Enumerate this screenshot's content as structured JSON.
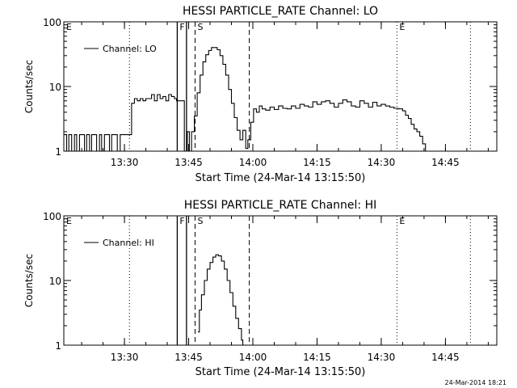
{
  "footer": "24-Mar-2014 18:21",
  "chart_data": [
    {
      "type": "line",
      "title": "HESSI PARTICLE_RATE Channel: LO",
      "xlabel": "Start Time (24-Mar-14 13:15:50)",
      "ylabel": "Counts/sec",
      "yscale": "log",
      "ylim": [
        1,
        100
      ],
      "xlim": [
        "13:15:50",
        "14:57:00"
      ],
      "xticks": [
        "13:30",
        "13:45",
        "14:00",
        "14:15",
        "14:30",
        "14:45"
      ],
      "yticks": [
        "1",
        "10",
        "100"
      ],
      "grid": false,
      "legend": {
        "position": "top-left",
        "entries": [
          "Channel: LO"
        ]
      },
      "markers": [
        {
          "label": "E",
          "time": "13:15:50",
          "style": "dotted"
        },
        {
          "label": "",
          "time": "13:31:10",
          "style": "dotted"
        },
        {
          "label": "F",
          "time": "13:42:20",
          "style": "solid"
        },
        {
          "label": "",
          "time": "13:44:30",
          "style": "solid"
        },
        {
          "label": "S",
          "time": "13:46:30",
          "style": "dashed"
        },
        {
          "label": "",
          "time": "13:59:10",
          "style": "dashed"
        },
        {
          "label": "E",
          "time": "14:33:40",
          "style": "dotted"
        },
        {
          "label": "",
          "time": "14:50:50",
          "style": "dotted"
        }
      ],
      "series": [
        {
          "name": "Channel: LO",
          "x": [
            "13:15:50",
            "13:16:30",
            "13:17:00",
            "13:17:40",
            "13:18:20",
            "13:18:50",
            "13:19:30",
            "13:20:00",
            "13:20:40",
            "13:21:10",
            "13:21:50",
            "13:22:20",
            "13:23:00",
            "13:23:30",
            "13:24:10",
            "13:24:40",
            "13:25:20",
            "13:25:50",
            "13:26:30",
            "13:27:00",
            "13:27:40",
            "13:28:20",
            "13:29:00",
            "13:29:30",
            "13:30:10",
            "13:30:40",
            "13:31:10",
            "13:31:40",
            "13:32:20",
            "13:33:00",
            "13:33:40",
            "13:34:20",
            "13:35:00",
            "13:35:40",
            "13:36:20",
            "13:37:00",
            "13:37:40",
            "13:38:20",
            "13:39:00",
            "13:39:40",
            "13:40:20",
            "13:41:00",
            "13:41:40",
            "13:42:10",
            "13:44:00",
            "13:44:40",
            "13:45:10",
            "13:45:40",
            "13:46:20",
            "13:47:00",
            "13:47:40",
            "13:48:20",
            "13:49:00",
            "13:49:40",
            "13:50:20",
            "13:51:00",
            "13:51:40",
            "13:52:20",
            "13:53:00",
            "13:53:40",
            "13:54:20",
            "13:55:00",
            "13:55:40",
            "13:56:20",
            "13:57:00",
            "13:57:40",
            "13:58:20",
            "13:58:50",
            "13:59:30",
            "14:00:10",
            "14:00:50",
            "14:01:30",
            "14:02:10",
            "14:03:00",
            "14:04:00",
            "14:05:00",
            "14:06:00",
            "14:07:00",
            "14:08:00",
            "14:09:00",
            "14:10:00",
            "14:11:00",
            "14:12:00",
            "14:13:00",
            "14:14:00",
            "14:15:00",
            "14:16:00",
            "14:17:00",
            "14:18:00",
            "14:19:00",
            "14:20:00",
            "14:21:00",
            "14:22:00",
            "14:23:00",
            "14:24:00",
            "14:25:00",
            "14:26:00",
            "14:27:00",
            "14:28:00",
            "14:29:00",
            "14:30:00",
            "14:31:00",
            "14:32:00",
            "14:33:00",
            "14:34:00",
            "14:35:00",
            "14:35:40",
            "14:36:20",
            "14:37:00",
            "14:37:40",
            "14:38:20",
            "14:39:00",
            "14:39:40",
            "14:40:20",
            "14:41:00",
            "14:42:00",
            "14:43:00",
            "14:44:00",
            "14:45:00",
            "14:46:00",
            "14:47:00",
            "14:48:00",
            "14:49:00",
            "14:50:00",
            "14:51:00",
            "14:52:00",
            "14:53:00",
            "14:54:00",
            "14:55:00",
            "14:56:00",
            "14:57:00"
          ],
          "y": [
            1.8,
            1.0,
            1.8,
            1.0,
            1.8,
            1.0,
            1.8,
            1.8,
            1.0,
            1.8,
            1.0,
            1.8,
            1.8,
            1.0,
            1.8,
            1.0,
            1.8,
            1.8,
            1.0,
            1.8,
            1.8,
            1.0,
            1.8,
            1.8,
            1.8,
            1.8,
            1.8,
            5.5,
            6.5,
            6.0,
            6.5,
            6.0,
            6.5,
            6.5,
            7.5,
            6.0,
            7.5,
            6.5,
            7.0,
            6.0,
            7.5,
            7.0,
            6.5,
            6.0,
            1.0,
            2.0,
            1.0,
            2.0,
            3.5,
            8.0,
            15.0,
            24.0,
            31.0,
            36.0,
            40.0,
            40.0,
            37.0,
            30.0,
            22.0,
            15.0,
            9.0,
            5.5,
            3.3,
            2.1,
            1.5,
            2.1,
            1.1,
            1.5,
            2.8,
            4.5,
            4.0,
            5.0,
            4.5,
            4.3,
            4.8,
            4.4,
            5.0,
            4.6,
            4.5,
            5.0,
            4.6,
            5.3,
            5.0,
            4.8,
            5.8,
            5.3,
            5.8,
            6.0,
            5.5,
            4.8,
            5.5,
            6.2,
            5.8,
            5.0,
            4.8,
            6.0,
            5.5,
            4.8,
            5.7,
            5.0,
            5.3,
            5.0,
            4.8,
            4.6,
            4.5,
            4.2,
            3.6,
            3.2,
            2.6,
            2.2,
            2.0,
            1.7,
            1.3,
            1.0,
            1.0,
            1.0,
            1.0,
            1.0,
            1.0,
            1.0,
            1.0,
            1.0,
            1.0,
            1.0,
            1.0,
            1.0,
            1.0,
            1.0,
            1.0,
            1.0,
            1.0
          ]
        }
      ]
    },
    {
      "type": "line",
      "title": "HESSI PARTICLE_RATE Channel: HI",
      "xlabel": "Start Time (24-Mar-14 13:15:50)",
      "ylabel": "Counts/sec",
      "yscale": "log",
      "ylim": [
        1,
        100
      ],
      "xlim": [
        "13:15:50",
        "14:57:00"
      ],
      "xticks": [
        "13:30",
        "13:45",
        "14:00",
        "14:15",
        "14:30",
        "14:45"
      ],
      "yticks": [
        "1",
        "10",
        "100"
      ],
      "grid": false,
      "legend": {
        "position": "top-left",
        "entries": [
          "Channel: HI"
        ]
      },
      "markers": [
        {
          "label": "E",
          "time": "13:15:50",
          "style": "dotted"
        },
        {
          "label": "",
          "time": "13:31:10",
          "style": "dotted"
        },
        {
          "label": "F",
          "time": "13:42:20",
          "style": "solid"
        },
        {
          "label": "",
          "time": "13:44:30",
          "style": "solid"
        },
        {
          "label": "S",
          "time": "13:46:30",
          "style": "dashed"
        },
        {
          "label": "",
          "time": "13:59:10",
          "style": "dashed"
        },
        {
          "label": "E",
          "time": "14:33:40",
          "style": "dotted"
        },
        {
          "label": "",
          "time": "14:50:50",
          "style": "dotted"
        }
      ],
      "series": [
        {
          "name": "Channel: HI",
          "x": [
            "13:47:10",
            "13:47:30",
            "13:48:00",
            "13:48:40",
            "13:49:20",
            "13:50:00",
            "13:50:40",
            "13:51:20",
            "13:52:00",
            "13:52:40",
            "13:53:20",
            "13:54:00",
            "13:54:40",
            "13:55:20",
            "13:56:00",
            "13:56:40",
            "13:57:20",
            "13:57:40"
          ],
          "y": [
            1.6,
            3.5,
            6.0,
            10.0,
            15.0,
            19.0,
            23.0,
            25.0,
            24.0,
            20.0,
            15.0,
            10.0,
            6.5,
            4.0,
            2.6,
            1.8,
            1.2,
            1.0
          ]
        }
      ]
    }
  ]
}
